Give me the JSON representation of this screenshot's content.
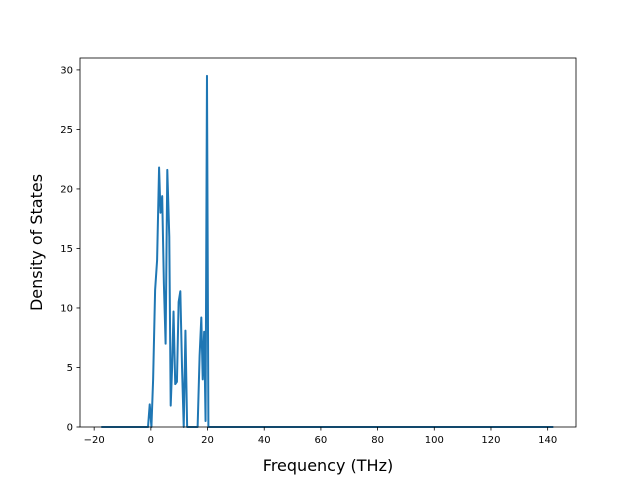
{
  "chart_data": {
    "type": "line",
    "title": "",
    "xlabel": "Frequency (THz)",
    "ylabel": "Density of States",
    "xlim": [
      -25,
      150
    ],
    "ylim": [
      0,
      31
    ],
    "xticks": [
      -20,
      0,
      20,
      40,
      60,
      80,
      100,
      120,
      140
    ],
    "yticks": [
      0,
      5,
      10,
      15,
      20,
      25,
      30
    ],
    "grid": false,
    "series_color": "#1f77b4",
    "series": [
      {
        "x": [
          -17.5,
          -1.0,
          -0.4,
          0.2,
          0.8,
          1.5,
          2.2,
          2.9,
          3.4,
          4.0,
          4.6,
          5.2,
          5.8,
          6.5,
          7.0,
          7.5,
          8.0,
          8.6,
          9.2,
          9.8,
          10.4,
          11.0,
          11.6,
          12.2,
          12.8,
          13.3,
          13.8,
          14.3,
          14.8,
          15.5,
          16.5,
          17.2,
          17.8,
          18.3,
          18.8,
          19.3,
          19.8,
          20.3,
          21.0,
          21.6,
          22.2,
          142.0
        ],
        "y": [
          0,
          0,
          1.9,
          0,
          4.0,
          11.5,
          14.0,
          21.8,
          18.0,
          19.4,
          12.0,
          7.0,
          21.6,
          16.0,
          1.8,
          5.0,
          9.7,
          3.6,
          3.8,
          10.5,
          11.4,
          5.0,
          0,
          8.1,
          0,
          0,
          0,
          0,
          0,
          0,
          0,
          6.0,
          9.2,
          4.0,
          8.0,
          0.5,
          29.5,
          0,
          0,
          0,
          0,
          0
        ]
      }
    ]
  }
}
